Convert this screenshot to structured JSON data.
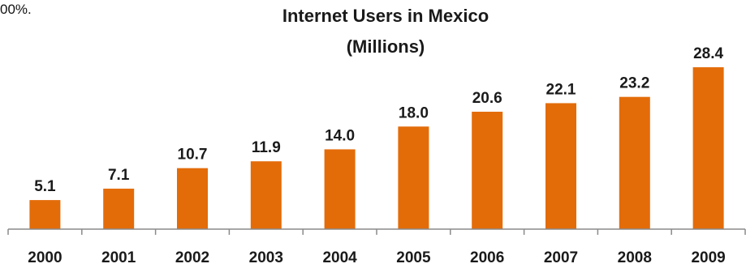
{
  "page": {
    "fragment_text": "00%."
  },
  "chart_data": {
    "type": "bar",
    "title": "Internet Users in Mexico",
    "subtitle": "(Millions)",
    "categories": [
      "2000",
      "2001",
      "2002",
      "2003",
      "2004",
      "2005",
      "2006",
      "2007",
      "2008",
      "2009"
    ],
    "values": [
      5.1,
      7.1,
      10.7,
      11.9,
      14.0,
      18.0,
      20.6,
      22.1,
      23.2,
      28.4
    ],
    "value_labels": [
      "5.1",
      "7.1",
      "10.7",
      "11.9",
      "14.0",
      "18.0",
      "20.6",
      "22.1",
      "23.2",
      "28.4"
    ],
    "xlabel": "",
    "ylabel": "",
    "ylim": [
      0,
      31
    ],
    "grid": false,
    "legend": "none",
    "colors": {
      "bar": "#e36c09",
      "axis": "#8a8a8a",
      "text": "#1a1a1a"
    }
  }
}
